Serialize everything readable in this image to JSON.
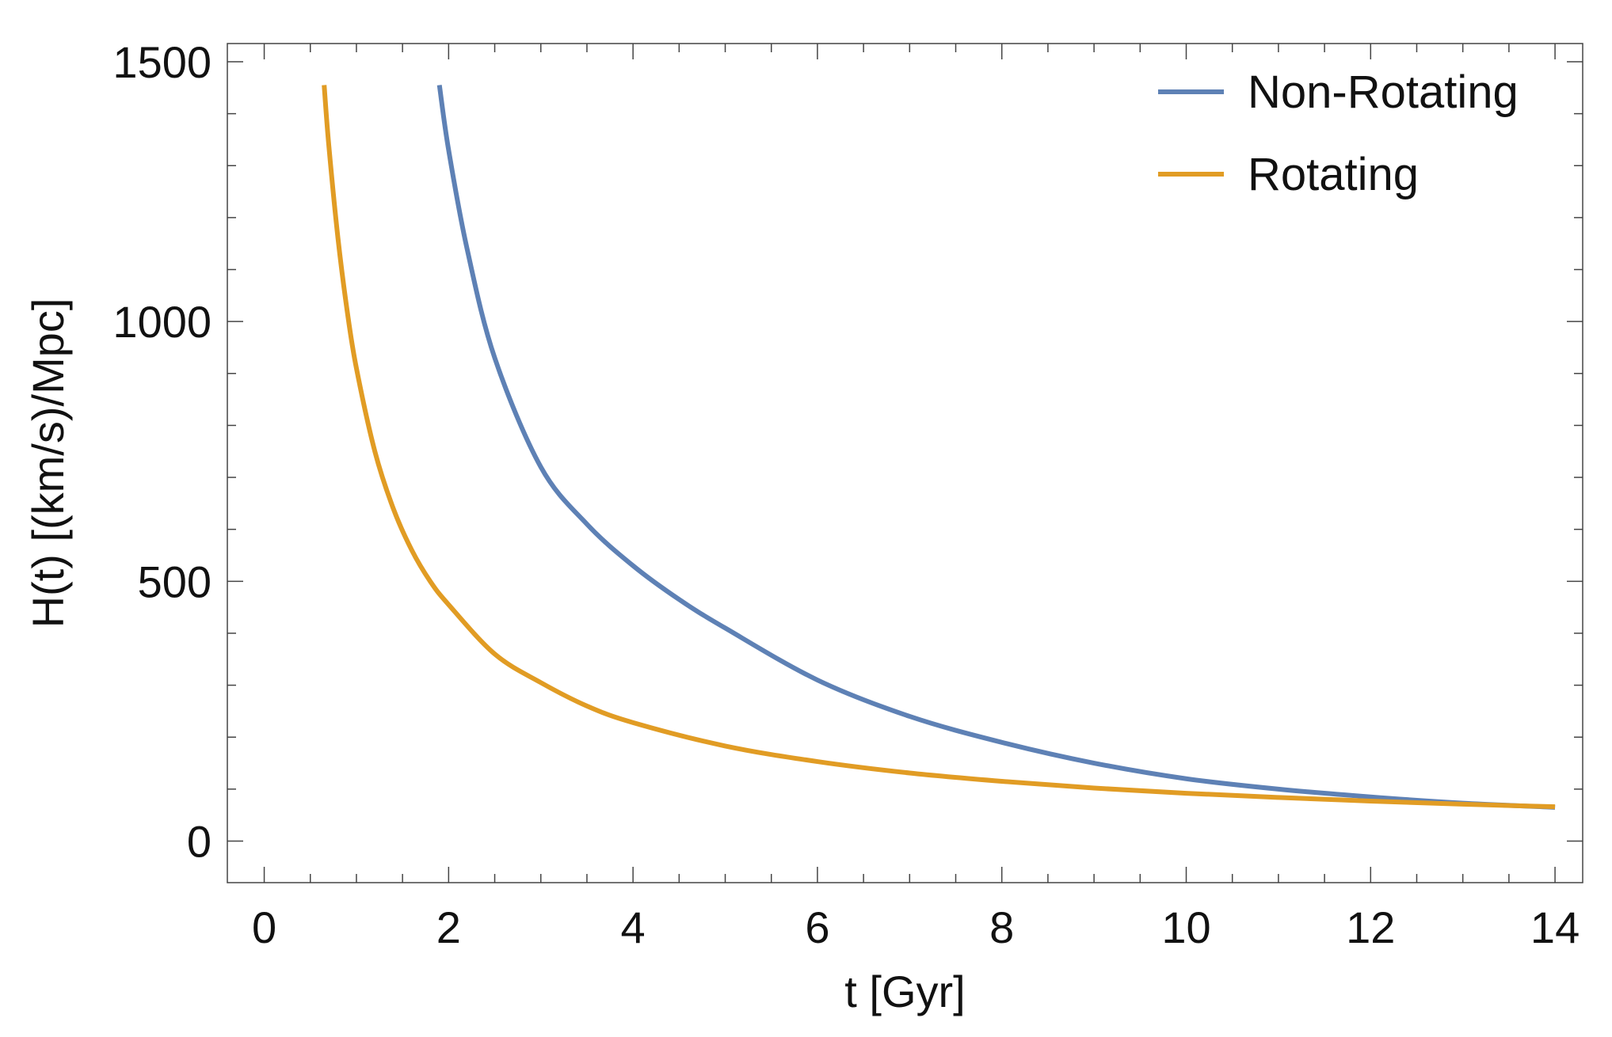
{
  "chart_data": {
    "type": "line",
    "title": "",
    "xlabel": "t [Gyr]",
    "ylabel": "H(t) [(km/s)/Mpc]",
    "xlim": [
      -0.4,
      14.3
    ],
    "ylim": [
      -80,
      1535
    ],
    "x_ticks": [
      0,
      2,
      4,
      6,
      8,
      10,
      12,
      14
    ],
    "x_tick_labels": [
      "0",
      "2",
      "4",
      "6",
      "8",
      "10",
      "12",
      "14"
    ],
    "x_minor_step": 0.5,
    "y_ticks": [
      0,
      500,
      1000,
      1500
    ],
    "y_tick_labels": [
      "0",
      "500",
      "1000",
      "1500"
    ],
    "y_minor_step": 100,
    "grid": false,
    "legend_position": "top-right",
    "series": [
      {
        "name": "Non-Rotating",
        "color": "#5E81B5",
        "x": [
          1.9,
          2.0,
          2.2,
          2.5,
          3.0,
          3.5,
          4.0,
          4.5,
          5.0,
          6.0,
          7.0,
          8.0,
          9.0,
          10.0,
          11.0,
          12.0,
          13.0,
          14.0
        ],
        "y": [
          1455,
          1330,
          1140,
          930,
          720,
          610,
          530,
          465,
          410,
          310,
          240,
          190,
          150,
          120,
          100,
          85,
          73,
          65
        ]
      },
      {
        "name": "Rotating",
        "color": "#E19C24",
        "x": [
          0.65,
          0.7,
          0.8,
          0.9,
          1.0,
          1.2,
          1.4,
          1.6,
          1.8,
          2.0,
          2.5,
          3.0,
          3.5,
          4.0,
          5.0,
          6.0,
          7.0,
          8.0,
          9.0,
          10.0,
          11.0,
          12.0,
          13.0,
          14.0
        ],
        "y": [
          1455,
          1340,
          1160,
          1020,
          910,
          750,
          640,
          560,
          500,
          455,
          360,
          305,
          260,
          228,
          183,
          153,
          131,
          115,
          102,
          92,
          84,
          77,
          71,
          66
        ]
      }
    ]
  }
}
